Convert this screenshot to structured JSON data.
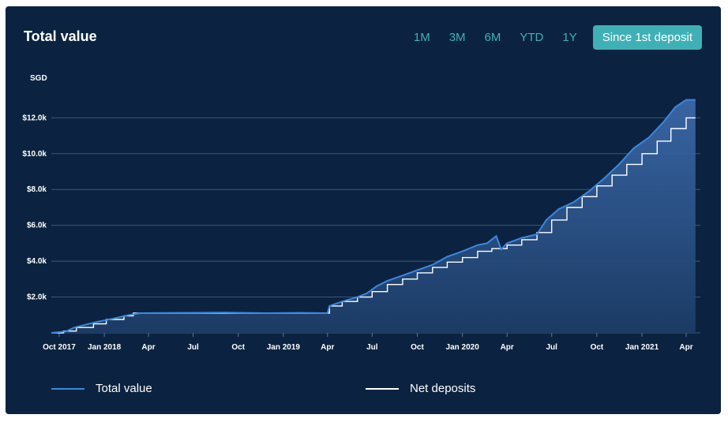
{
  "card": {
    "title": "Total value",
    "ranges": [
      {
        "label": "1M",
        "active": false
      },
      {
        "label": "3M",
        "active": false
      },
      {
        "label": "6M",
        "active": false
      },
      {
        "label": "YTD",
        "active": false
      },
      {
        "label": "1Y",
        "active": false
      },
      {
        "label": "Since 1st deposit",
        "active": true
      }
    ]
  },
  "colors": {
    "background": "#0b2340",
    "total_line": "#3b87e0",
    "deposit_line": "#ffffff",
    "accent": "#3fb0b6"
  },
  "chart_data": {
    "type": "area",
    "ylabel": "SGD",
    "ylim": [
      0,
      13600
    ],
    "y_ticks": [
      {
        "value": 2000,
        "label": "$2.0k"
      },
      {
        "value": 4000,
        "label": "$4.0k"
      },
      {
        "value": 6000,
        "label": "$6.0k"
      },
      {
        "value": 8000,
        "label": "$8.0k"
      },
      {
        "value": 10000,
        "label": "$10.0k"
      },
      {
        "value": 12000,
        "label": "$12.0k"
      }
    ],
    "xlim": [
      "2017-09-15",
      "2021-04-30"
    ],
    "x_ticks": [
      {
        "date": "2017-10-01",
        "label": "Oct 2017"
      },
      {
        "date": "2018-01-01",
        "label": "Jan 2018"
      },
      {
        "date": "2018-04-01",
        "label": "Apr"
      },
      {
        "date": "2018-07-01",
        "label": "Jul"
      },
      {
        "date": "2018-10-01",
        "label": "Oct"
      },
      {
        "date": "2019-01-01",
        "label": "Jan 2019"
      },
      {
        "date": "2019-04-01",
        "label": "Apr"
      },
      {
        "date": "2019-07-01",
        "label": "Jul"
      },
      {
        "date": "2019-10-01",
        "label": "Oct"
      },
      {
        "date": "2020-01-01",
        "label": "Jan 2020"
      },
      {
        "date": "2020-04-01",
        "label": "Apr"
      },
      {
        "date": "2020-07-01",
        "label": "Jul"
      },
      {
        "date": "2020-10-01",
        "label": "Oct"
      },
      {
        "date": "2021-01-01",
        "label": "Jan 2021"
      },
      {
        "date": "2021-04-01",
        "label": "Apr"
      }
    ],
    "series": [
      {
        "name": "Total value",
        "points": [
          [
            "2017-09-15",
            0
          ],
          [
            "2017-10-15",
            80
          ],
          [
            "2017-11-01",
            300
          ],
          [
            "2017-12-15",
            600
          ],
          [
            "2018-01-20",
            800
          ],
          [
            "2018-02-20",
            1000
          ],
          [
            "2018-03-15",
            1100
          ],
          [
            "2018-06-01",
            1120
          ],
          [
            "2018-09-01",
            1130
          ],
          [
            "2018-12-01",
            1100
          ],
          [
            "2019-02-01",
            1120
          ],
          [
            "2019-04-01",
            1100
          ],
          [
            "2019-04-05",
            1500
          ],
          [
            "2019-05-01",
            1750
          ],
          [
            "2019-06-01",
            2000
          ],
          [
            "2019-06-20",
            2200
          ],
          [
            "2019-07-10",
            2600
          ],
          [
            "2019-08-01",
            2900
          ],
          [
            "2019-09-01",
            3200
          ],
          [
            "2019-10-01",
            3500
          ],
          [
            "2019-11-01",
            3800
          ],
          [
            "2019-12-01",
            4250
          ],
          [
            "2020-01-01",
            4550
          ],
          [
            "2020-02-01",
            4900
          ],
          [
            "2020-02-20",
            5000
          ],
          [
            "2020-03-10",
            5400
          ],
          [
            "2020-03-20",
            4650
          ],
          [
            "2020-04-01",
            5000
          ],
          [
            "2020-05-01",
            5300
          ],
          [
            "2020-06-01",
            5500
          ],
          [
            "2020-06-20",
            6300
          ],
          [
            "2020-07-15",
            6900
          ],
          [
            "2020-08-15",
            7300
          ],
          [
            "2020-09-15",
            7900
          ],
          [
            "2020-10-15",
            8600
          ],
          [
            "2020-11-15",
            9400
          ],
          [
            "2020-12-15",
            10300
          ],
          [
            "2021-01-15",
            10900
          ],
          [
            "2021-02-15",
            11800
          ],
          [
            "2021-03-10",
            12600
          ],
          [
            "2021-04-01",
            13000
          ],
          [
            "2021-04-20",
            13000
          ]
        ]
      },
      {
        "name": "Net deposits",
        "points": [
          [
            "2017-09-15",
            0
          ],
          [
            "2017-10-10",
            100
          ],
          [
            "2017-11-05",
            300
          ],
          [
            "2017-12-10",
            500
          ],
          [
            "2018-01-05",
            750
          ],
          [
            "2018-02-10",
            950
          ],
          [
            "2018-03-01",
            1100
          ],
          [
            "2018-09-01",
            1100
          ],
          [
            "2019-04-01",
            1100
          ],
          [
            "2019-04-05",
            1500
          ],
          [
            "2019-05-01",
            1750
          ],
          [
            "2019-06-01",
            2000
          ],
          [
            "2019-07-01",
            2300
          ],
          [
            "2019-08-01",
            2700
          ],
          [
            "2019-09-01",
            3000
          ],
          [
            "2019-10-01",
            3350
          ],
          [
            "2019-11-01",
            3650
          ],
          [
            "2019-12-01",
            3950
          ],
          [
            "2020-01-01",
            4200
          ],
          [
            "2020-02-01",
            4550
          ],
          [
            "2020-03-01",
            4700
          ],
          [
            "2020-04-01",
            4900
          ],
          [
            "2020-05-01",
            5200
          ],
          [
            "2020-06-01",
            5600
          ],
          [
            "2020-07-01",
            6300
          ],
          [
            "2020-08-01",
            7000
          ],
          [
            "2020-09-01",
            7600
          ],
          [
            "2020-10-01",
            8200
          ],
          [
            "2020-11-01",
            8800
          ],
          [
            "2020-12-01",
            9400
          ],
          [
            "2021-01-01",
            10000
          ],
          [
            "2021-02-01",
            10700
          ],
          [
            "2021-03-01",
            11400
          ],
          [
            "2021-04-01",
            12000
          ],
          [
            "2021-04-20",
            12000
          ]
        ]
      }
    ],
    "grid": true
  },
  "legend": {
    "total": "Total value",
    "deposits": "Net deposits"
  }
}
